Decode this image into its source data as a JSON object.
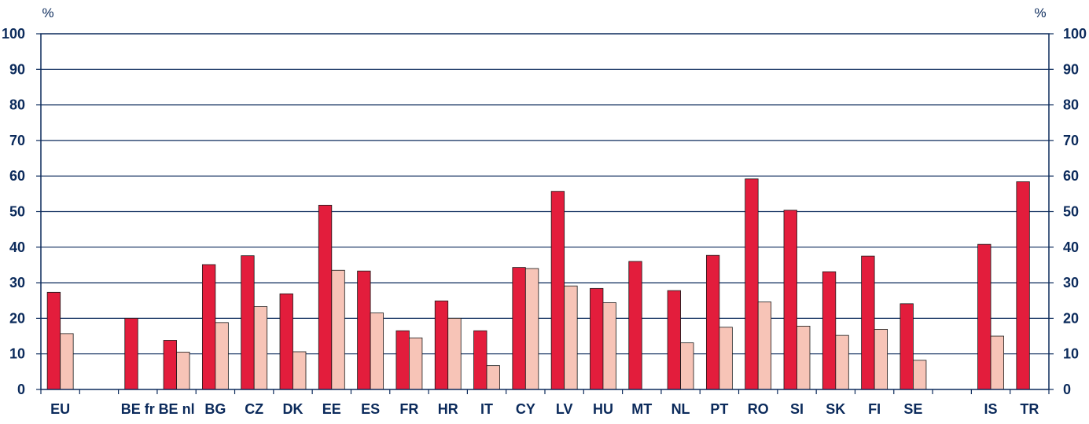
{
  "chart_data": {
    "type": "bar",
    "y_unit_left": "%",
    "y_unit_right": "%",
    "ylim": [
      0,
      100
    ],
    "yticks": [
      0,
      10,
      20,
      30,
      40,
      50,
      60,
      70,
      80,
      90,
      100
    ],
    "grid": true,
    "categories": [
      "EU",
      "",
      "BE fr",
      "BE nl",
      "BG",
      "CZ",
      "DK",
      "EE",
      "ES",
      "FR",
      "HR",
      "IT",
      "CY",
      "LV",
      "HU",
      "MT",
      "NL",
      "PT",
      "RO",
      "SI",
      "SK",
      "FI",
      "SE",
      "",
      "IS",
      "TR"
    ],
    "series": [
      {
        "color": "#e31d3c",
        "values": [
          27.3,
          null,
          20.0,
          13.8,
          35.1,
          37.6,
          26.9,
          51.8,
          33.3,
          16.5,
          24.9,
          16.5,
          34.3,
          55.7,
          28.4,
          36.0,
          27.8,
          37.7,
          59.2,
          50.4,
          33.1,
          37.5,
          24.1,
          null,
          40.8,
          58.4
        ]
      },
      {
        "color": "#f7c4b7",
        "values": [
          15.7,
          null,
          null,
          10.5,
          18.8,
          23.3,
          10.6,
          33.5,
          21.5,
          14.5,
          20.0,
          6.7,
          34.0,
          29.1,
          24.4,
          null,
          13.1,
          17.5,
          24.6,
          17.8,
          15.2,
          16.9,
          8.2,
          null,
          15.0,
          null
        ]
      }
    ]
  }
}
